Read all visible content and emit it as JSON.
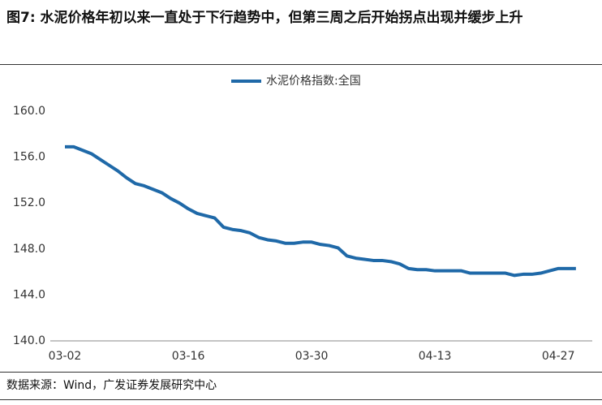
{
  "chart_data": {
    "type": "line",
    "title": "图7: 水泥价格年初以来一直处于下行趋势中，但第三周之后开始拐点出现并缓步上升",
    "source": "数据来源：Wind，广发证券发展研究中心",
    "categories": [
      "03-02",
      null,
      null,
      null,
      null,
      null,
      null,
      null,
      null,
      null,
      null,
      null,
      null,
      null,
      "03-16",
      null,
      null,
      null,
      null,
      null,
      null,
      null,
      null,
      null,
      null,
      null,
      null,
      null,
      "03-30",
      null,
      null,
      null,
      null,
      null,
      null,
      null,
      null,
      null,
      null,
      null,
      null,
      null,
      "04-13",
      null,
      null,
      null,
      null,
      null,
      null,
      null,
      null,
      null,
      null,
      null,
      null,
      null,
      "04-27",
      null,
      null
    ],
    "series": [
      {
        "name": "水泥价格指数:全国",
        "color": "#1f69a8",
        "values": [
          156.9,
          156.9,
          156.6,
          156.3,
          155.8,
          155.3,
          154.8,
          154.2,
          153.7,
          153.5,
          153.2,
          152.9,
          152.4,
          152.0,
          151.5,
          151.1,
          150.9,
          150.7,
          149.9,
          149.7,
          149.6,
          149.4,
          149.0,
          148.8,
          148.7,
          148.5,
          148.5,
          148.6,
          148.6,
          148.4,
          148.3,
          148.1,
          147.4,
          147.2,
          147.1,
          147.0,
          147.0,
          146.9,
          146.7,
          146.3,
          146.2,
          146.2,
          146.1,
          146.1,
          146.1,
          146.1,
          145.9,
          145.9,
          145.9,
          145.9,
          145.9,
          145.7,
          145.8,
          145.8,
          145.9,
          146.1,
          146.3,
          146.3,
          146.3
        ]
      }
    ],
    "ylim": [
      140,
      160
    ],
    "yticks": [
      {
        "value": 140,
        "label": "140.0"
      },
      {
        "value": 144,
        "label": "144.0"
      },
      {
        "value": 148,
        "label": "148.0"
      },
      {
        "value": 152,
        "label": "152.0"
      },
      {
        "value": 156,
        "label": "156.0"
      },
      {
        "value": 160,
        "label": "160.0"
      }
    ],
    "legend": "top"
  }
}
